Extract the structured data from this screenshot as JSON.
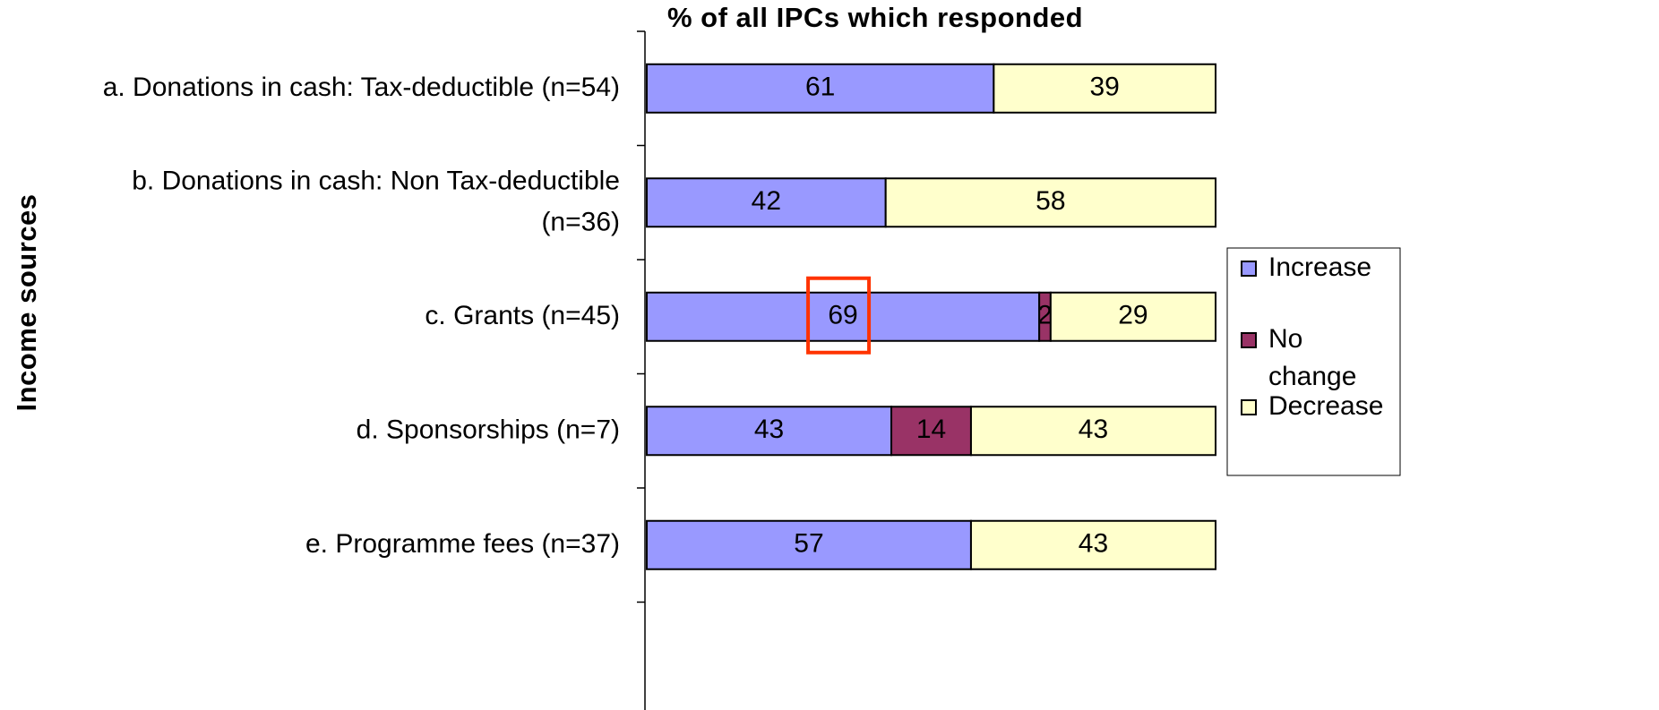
{
  "chart_data": {
    "type": "stacked_barh",
    "title": "% of all IPCs which responded",
    "y_label": "Income sources",
    "categories": [
      "a. Donations in cash: Tax-deductible (n=54)",
      "b. Donations in cash: Non Tax-deductible (n=36)",
      "c. Grants (n=45)",
      "d. Sponsorships (n=7)",
      "e. Programme fees (n=37)"
    ],
    "series": [
      {
        "name": "Increase",
        "color": "#9999ff",
        "values": [
          61,
          42,
          69,
          43,
          57
        ]
      },
      {
        "name": "No change",
        "color": "#993366",
        "values": [
          null,
          null,
          2,
          14,
          null
        ]
      },
      {
        "name": "Decrease",
        "color": "#ffffcc",
        "values": [
          39,
          58,
          29,
          43,
          43
        ]
      }
    ],
    "xlim": [
      0,
      100
    ],
    "legend": "right"
  }
}
